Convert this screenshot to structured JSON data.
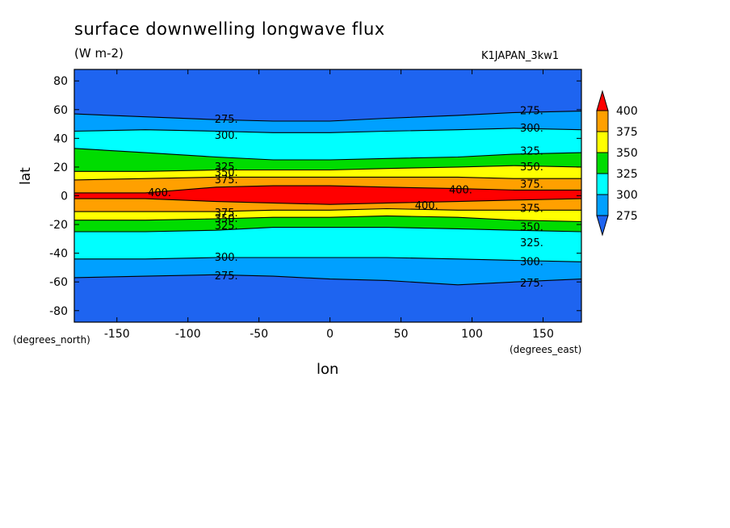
{
  "title": "surface downwelling longwave flux",
  "units": "(W m-2)",
  "run_name": "K1JAPAN_3kw1",
  "chart_data": {
    "type": "heatmap",
    "xlabel": "lon",
    "ylabel": "lat",
    "x_units_note": "(degrees_east)",
    "y_units_note": "(degrees_north)",
    "xlim": [
      -180,
      177
    ],
    "ylim": [
      -88,
      88
    ],
    "x_ticks": [
      -150,
      -100,
      -50,
      0,
      50,
      100,
      150
    ],
    "x_tick_labels": [
      "-150",
      "-100",
      "-50",
      "0",
      "50",
      "100",
      "150"
    ],
    "y_ticks": [
      -80,
      -60,
      -40,
      -20,
      0,
      20,
      40,
      60,
      80
    ],
    "y_tick_labels": [
      "-80",
      "-60",
      "-40",
      "-20",
      "0",
      "20",
      "40",
      "60",
      "80"
    ],
    "colorbar": {
      "levels": [
        275,
        300,
        325,
        350,
        375,
        400
      ],
      "labels": [
        "275",
        "300",
        "325",
        "350",
        "375",
        "400"
      ],
      "colors": [
        "#1e64f0",
        "#00a0ff",
        "#00ffff",
        "#00dc00",
        "#ffff00",
        "#ffa000",
        "#ff0000"
      ]
    },
    "band_edges": {
      "lon": [
        -180,
        -130,
        -80,
        -40,
        0,
        40,
        90,
        130,
        177
      ],
      "north": {
        "275": [
          57,
          55,
          53,
          52,
          52,
          54,
          56,
          58,
          59
        ],
        "300": [
          45,
          46,
          45,
          44,
          44,
          45,
          46,
          47,
          46
        ],
        "325": [
          33,
          30,
          27,
          25,
          25,
          26,
          27,
          29,
          30
        ],
        "350": [
          17,
          17,
          18,
          18,
          18,
          19,
          20,
          21,
          20
        ],
        "375": [
          11,
          12,
          13,
          13,
          13,
          13,
          13,
          12,
          12
        ],
        "400": [
          2,
          2,
          6,
          7,
          7,
          6,
          5,
          4,
          4
        ]
      },
      "south": {
        "275": [
          -57,
          -56,
          -55,
          -56,
          -58,
          -59,
          -62,
          -60,
          -58
        ],
        "300": [
          -44,
          -44,
          -43,
          -43,
          -43,
          -43,
          -44,
          -45,
          -46
        ],
        "325": [
          -25,
          -25,
          -24,
          -22,
          -22,
          -22,
          -23,
          -24,
          -25
        ],
        "350": [
          -17,
          -17,
          -16,
          -15,
          -15,
          -14,
          -15,
          -17,
          -18
        ],
        "375": [
          -11,
          -11,
          -11,
          -10,
          -10,
          -9,
          -10,
          -10,
          -10
        ],
        "400": [
          -2,
          -2,
          -4,
          -5,
          -6,
          -5,
          -4,
          -3,
          -2
        ]
      }
    },
    "contour_labels": [
      {
        "text": "275.",
        "lon": -73,
        "lat": 53
      },
      {
        "text": "300.",
        "lon": -73,
        "lat": 42
      },
      {
        "text": "325.",
        "lon": -73,
        "lat": 20
      },
      {
        "text": "350.",
        "lon": -73,
        "lat": 16
      },
      {
        "text": "375.",
        "lon": -73,
        "lat": 11
      },
      {
        "text": "400.",
        "lon": -120,
        "lat": 2
      },
      {
        "text": "375.",
        "lon": -73,
        "lat": -12
      },
      {
        "text": "350.",
        "lon": -73,
        "lat": -16
      },
      {
        "text": "325.",
        "lon": -73,
        "lat": -21
      },
      {
        "text": "300.",
        "lon": -73,
        "lat": -43
      },
      {
        "text": "275.",
        "lon": -73,
        "lat": -56
      },
      {
        "text": "275.",
        "lon": 142,
        "lat": 59
      },
      {
        "text": "300.",
        "lon": 142,
        "lat": 47
      },
      {
        "text": "325.",
        "lon": 142,
        "lat": 31
      },
      {
        "text": "350.",
        "lon": 142,
        "lat": 20
      },
      {
        "text": "375.",
        "lon": 142,
        "lat": 8
      },
      {
        "text": "400.",
        "lon": 92,
        "lat": 4
      },
      {
        "text": "400.",
        "lon": 68,
        "lat": -7
      },
      {
        "text": "375.",
        "lon": 142,
        "lat": -9
      },
      {
        "text": "350.",
        "lon": 142,
        "lat": -22
      },
      {
        "text": "325.",
        "lon": 142,
        "lat": -33
      },
      {
        "text": "300.",
        "lon": 142,
        "lat": -46
      },
      {
        "text": "275.",
        "lon": 142,
        "lat": -61
      }
    ]
  }
}
